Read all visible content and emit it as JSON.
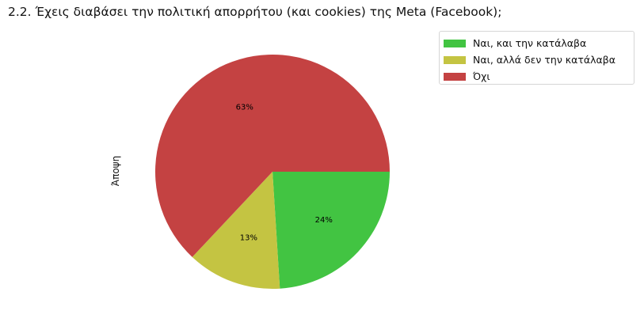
{
  "chart_data": {
    "type": "pie",
    "title": "2.2. Έχεις διαβάσει την πολιτική απορρήτου (και cookies) της Meta (Facebook);",
    "ylabel": "Άποψη",
    "categories": [
      "Ναι, και την κατάλαβα",
      "Ναι, αλλά δεν την κατάλαβα",
      "Όχι"
    ],
    "values": [
      24,
      13,
      63
    ],
    "labels": [
      "24%",
      "13%",
      "63%"
    ],
    "colors": [
      "#42c442",
      "#c4c442",
      "#c44242"
    ],
    "start_angle": 0,
    "direction": "clockwise",
    "legend": "top-right outside"
  }
}
